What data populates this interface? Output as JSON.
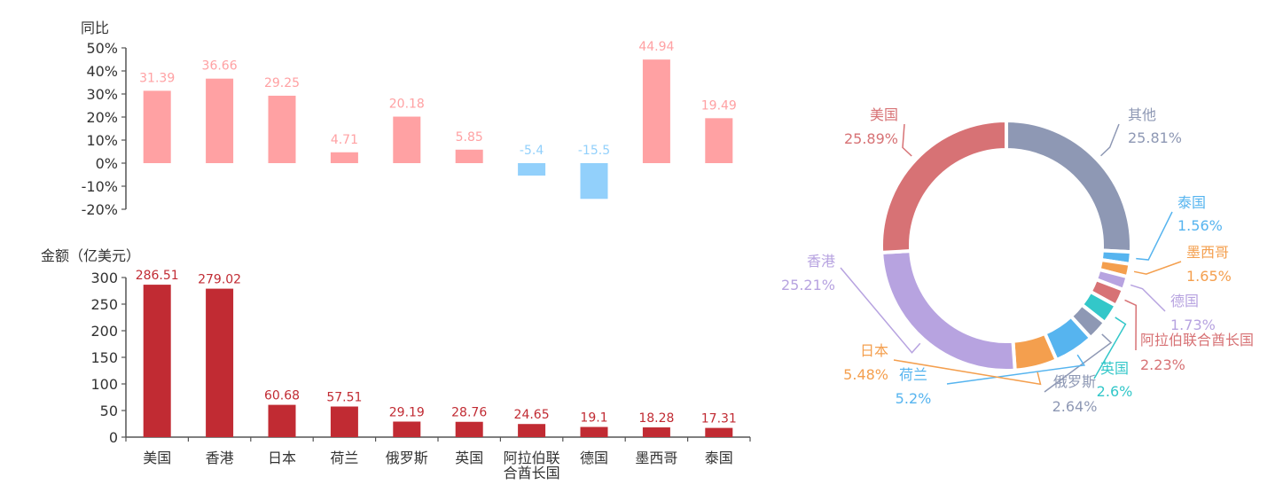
{
  "chart_data": [
    {
      "type": "bar",
      "title": "",
      "ylabel": "同比",
      "xlabel": "",
      "ylim": [
        -20,
        50
      ],
      "yticks": [
        "50%",
        "40%",
        "30%",
        "20%",
        "10%",
        "0%",
        "-10%",
        "-20%"
      ],
      "categories": [
        "美国",
        "香港",
        "日本",
        "荷兰",
        "俄罗斯",
        "英国",
        "阿拉伯联合酋长国",
        "德国",
        "墨西哥",
        "泰国"
      ],
      "values": [
        31.39,
        36.66,
        29.25,
        4.71,
        20.18,
        5.85,
        -5.4,
        -15.5,
        44.94,
        19.49
      ],
      "value_labels": [
        "31.39",
        "36.66",
        "29.25",
        "4.71",
        "20.18",
        "5.85",
        "-5.4",
        "-15.5",
        "44.94",
        "19.49"
      ],
      "positive_color": "#ffa1a3",
      "negative_color": "#92d0fb",
      "grid": false
    },
    {
      "type": "bar",
      "title": "",
      "ylabel": "金额（亿美元）",
      "xlabel": "",
      "ylim": [
        0,
        300
      ],
      "yticks": [
        "300",
        "250",
        "200",
        "150",
        "100",
        "50",
        "0"
      ],
      "categories": [
        "美国",
        "香港",
        "日本",
        "荷兰",
        "俄罗斯",
        "英国",
        "阿拉伯联合酋长国",
        "德国",
        "墨西哥",
        "泰国"
      ],
      "category_labels": [
        [
          "美国"
        ],
        [
          "香港"
        ],
        [
          "日本"
        ],
        [
          "荷兰"
        ],
        [
          "俄罗斯"
        ],
        [
          "英国"
        ],
        [
          "阿拉伯联",
          "合酋长国"
        ],
        [
          "德国"
        ],
        [
          "墨西哥"
        ],
        [
          "泰国"
        ]
      ],
      "values": [
        286.51,
        279.02,
        60.68,
        57.51,
        29.19,
        28.76,
        24.65,
        19.1,
        18.28,
        17.31
      ],
      "value_labels": [
        "286.51",
        "279.02",
        "60.68",
        "57.51",
        "29.19",
        "28.76",
        "24.65",
        "19.1",
        "18.28",
        "17.31"
      ],
      "color": "#c12b33",
      "grid": false
    },
    {
      "type": "pie",
      "donut": true,
      "title": "",
      "slices": [
        {
          "name": "其他",
          "value": 25.81,
          "label": "25.81%",
          "color": "#8e98b4"
        },
        {
          "name": "泰国",
          "value": 1.56,
          "label": "1.56%",
          "color": "#56b4ef"
        },
        {
          "name": "墨西哥",
          "value": 1.65,
          "label": "1.65%",
          "color": "#f49f4e"
        },
        {
          "name": "德国",
          "value": 1.73,
          "label": "1.73%",
          "color": "#b7a3e0"
        },
        {
          "name": "阿拉伯联合酋长国",
          "value": 2.23,
          "label": "2.23%",
          "color": "#d77275"
        },
        {
          "name": "英国",
          "value": 2.6,
          "label": "2.6%",
          "color": "#33c7c9"
        },
        {
          "name": "俄罗斯",
          "value": 2.64,
          "label": "2.64%",
          "color": "#8e98b4"
        },
        {
          "name": "荷兰",
          "value": 5.2,
          "label": "5.2%",
          "color": "#56b4ef"
        },
        {
          "name": "日本",
          "value": 5.48,
          "label": "5.48%",
          "color": "#f49f4e"
        },
        {
          "name": "香港",
          "value": 25.21,
          "label": "25.21%",
          "color": "#b7a3e0"
        },
        {
          "name": "美国",
          "value": 25.89,
          "label": "25.89%",
          "color": "#d77275"
        }
      ]
    }
  ]
}
